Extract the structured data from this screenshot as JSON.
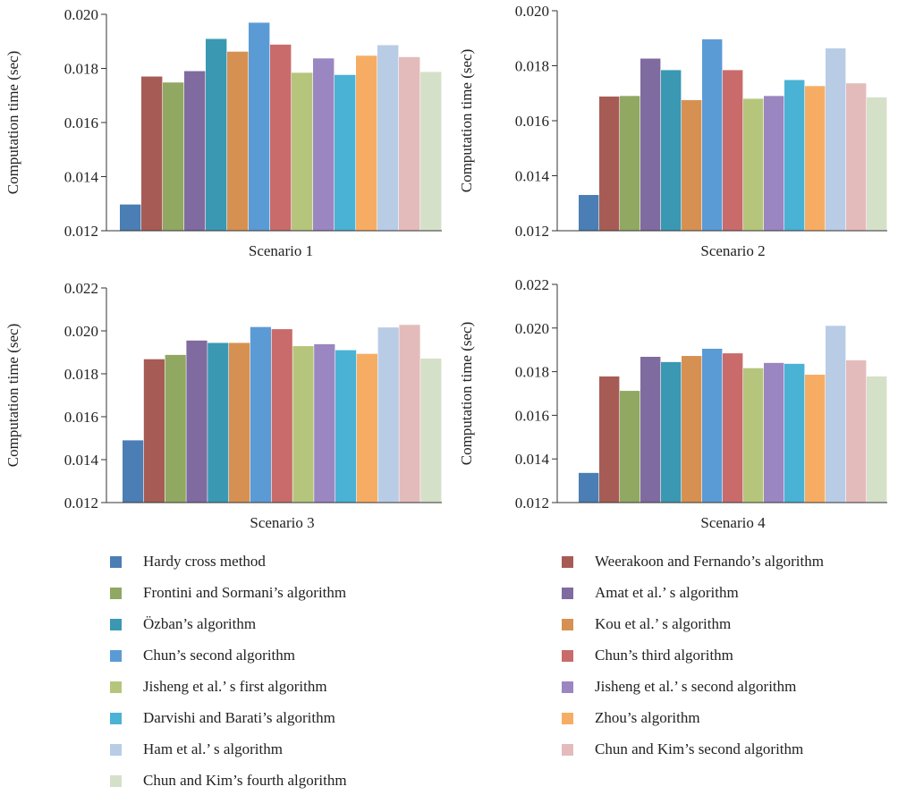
{
  "colors": [
    "#4a7eb4",
    "#a65c55",
    "#90a862",
    "#7f6b9f",
    "#3a98b2",
    "#d69152",
    "#5b9bd5",
    "#c96b6b",
    "#b5c67c",
    "#9a86c0",
    "#4ab2d4",
    "#f6ad63",
    "#b8cce6",
    "#e4bbbb",
    "#d5e0c9"
  ],
  "legend": [
    "Hardy cross method",
    "Weerakoon and Fernando’s algorithm",
    "Frontini and Sormani’s algorithm",
    "Amat et al.’ s algorithm",
    "Özban’s algorithm",
    "Kou et al.’ s algorithm",
    "Chun’s second algorithm",
    "Chun’s third algorithm",
    "Jisheng et al.’ s first algorithm",
    "Jisheng et al.’ s second algorithm",
    "Darvishi and Barati’s algorithm",
    "Zhou’s algorithm",
    "Ham et al.’ s algorithm",
    "Chun and Kim’s second algorithm",
    "Chun and Kim’s fourth algorithm"
  ],
  "chart_data": [
    {
      "type": "bar",
      "xlabel": "Scenario 1",
      "ylabel": "Computation time (sec)",
      "ylim": [
        0.012,
        0.02
      ],
      "yticks": [
        "0.012",
        "0.014",
        "0.016",
        "0.018",
        "0.020"
      ],
      "values": [
        0.01297,
        0.0177,
        0.01748,
        0.0179,
        0.01909,
        0.01862,
        0.01969,
        0.01888,
        0.01784,
        0.01837,
        0.01776,
        0.01847,
        0.01886,
        0.01842,
        0.01787
      ]
    },
    {
      "type": "bar",
      "xlabel": "Scenario 2",
      "ylabel": "Computation time (sec)",
      "ylim": [
        0.012,
        0.02
      ],
      "yticks": [
        "0.012",
        "0.014",
        "0.016",
        "0.018",
        "0.020"
      ],
      "values": [
        0.0133,
        0.01688,
        0.0169,
        0.01826,
        0.01784,
        0.01675,
        0.01896,
        0.01784,
        0.0168,
        0.0169,
        0.01748,
        0.01726,
        0.01863,
        0.01736,
        0.01685
      ]
    },
    {
      "type": "bar",
      "xlabel": "Scenario 3",
      "ylabel": "Computation time (sec)",
      "ylim": [
        0.012,
        0.022
      ],
      "yticks": [
        "0.012",
        "0.014",
        "0.016",
        "0.018",
        "0.020",
        "0.022"
      ],
      "values": [
        0.0149,
        0.01868,
        0.01888,
        0.01955,
        0.01944,
        0.01944,
        0.02018,
        0.02008,
        0.01929,
        0.01938,
        0.0191,
        0.01893,
        0.02016,
        0.02028,
        0.01871
      ]
    },
    {
      "type": "bar",
      "xlabel": "Scenario 4",
      "ylabel": "Computation time (sec)",
      "ylim": [
        0.012,
        0.022
      ],
      "yticks": [
        "0.012",
        "0.014",
        "0.016",
        "0.018",
        "0.020",
        "0.022"
      ],
      "values": [
        0.01336,
        0.01778,
        0.01712,
        0.01868,
        0.01844,
        0.01872,
        0.01905,
        0.01884,
        0.01816,
        0.0184,
        0.01836,
        0.01786,
        0.0201,
        0.01852,
        0.01778
      ]
    }
  ]
}
